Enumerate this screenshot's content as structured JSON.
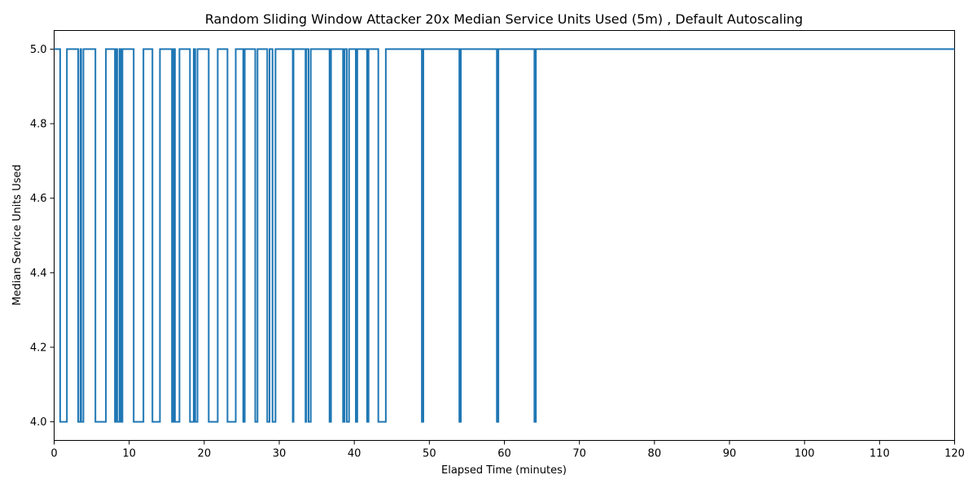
{
  "chart_data": {
    "type": "line",
    "title": "Random Sliding Window Attacker 20x Median Service Units Used (5m) , Default Autoscaling",
    "xlabel": "Elapsed Time (minutes)",
    "ylabel": "Median Service Units Used",
    "xlim": [
      0,
      120
    ],
    "ylim": [
      3.95,
      5.05
    ],
    "xticks": [
      0,
      10,
      20,
      30,
      40,
      50,
      60,
      70,
      80,
      90,
      100,
      110,
      120
    ],
    "yticks": [
      4.0,
      4.2,
      4.4,
      4.6,
      4.8,
      5.0
    ],
    "ytick_labels": [
      "4.0",
      "4.2",
      "4.4",
      "4.6",
      "4.8",
      "5.0"
    ],
    "grid": false,
    "legend": "none",
    "series": [
      {
        "color": "#1f77b4",
        "x": [
          0,
          0.8,
          0.8,
          1.7,
          1.7,
          3.2,
          3.2,
          3.5,
          3.5,
          3.6,
          3.6,
          3.9,
          3.9,
          4.1,
          4.1,
          5.5,
          5.5,
          6.9,
          6.9,
          8.1,
          8.1,
          8.3,
          8.3,
          8.4,
          8.4,
          8.7,
          8.7,
          8.9,
          8.9,
          9.1,
          9.1,
          9.3,
          9.3,
          10.6,
          10.6,
          11.9,
          11.9,
          13.1,
          13.1,
          14.1,
          14.1,
          15.7,
          15.7,
          15.9,
          15.9,
          16.1,
          16.1,
          16.7,
          16.7,
          18.1,
          18.1,
          18.6,
          18.6,
          18.8,
          18.8,
          19.1,
          19.1,
          20.6,
          20.6,
          21.8,
          21.8,
          23.1,
          23.1,
          24.2,
          24.2,
          25.2,
          25.2,
          25.4,
          25.4,
          26.8,
          26.8,
          27.1,
          27.1,
          28.4,
          28.4,
          28.7,
          28.7,
          29.1,
          29.1,
          29.5,
          29.5,
          31.8,
          31.8,
          31.9,
          31.9,
          33.5,
          33.5,
          33.6,
          33.6,
          33.9,
          33.9,
          34.2,
          34.2,
          36.7,
          36.7,
          36.9,
          36.9,
          38.5,
          38.5,
          38.7,
          38.7,
          39.0,
          39.0,
          39.3,
          39.3,
          40.2,
          40.2,
          40.4,
          40.4,
          41.7,
          41.7,
          41.9,
          41.9,
          43.2,
          43.2,
          44.2,
          44.2,
          49.0,
          49.0,
          49.2,
          49.2,
          54.0,
          54.0,
          54.2,
          54.2,
          59.0,
          59.0,
          59.2,
          59.2,
          64.0,
          64.0,
          64.2,
          64.2,
          120
        ],
        "y": [
          5.0,
          5.0,
          4.0,
          4.0,
          5.0,
          5.0,
          4.0,
          4.0,
          5.0,
          5.0,
          4.0,
          4.0,
          5.0,
          5.0,
          5.0,
          5.0,
          4.0,
          4.0,
          5.0,
          5.0,
          4.0,
          4.0,
          5.0,
          5.0,
          4.0,
          4.0,
          5.0,
          5.0,
          4.0,
          4.0,
          5.0,
          5.0,
          5.0,
          5.0,
          4.0,
          4.0,
          5.0,
          5.0,
          4.0,
          4.0,
          5.0,
          5.0,
          4.0,
          4.0,
          5.0,
          5.0,
          4.0,
          4.0,
          5.0,
          5.0,
          4.0,
          4.0,
          5.0,
          5.0,
          4.0,
          4.0,
          5.0,
          5.0,
          4.0,
          4.0,
          5.0,
          5.0,
          4.0,
          4.0,
          5.0,
          5.0,
          4.0,
          4.0,
          5.0,
          5.0,
          4.0,
          4.0,
          5.0,
          5.0,
          4.0,
          4.0,
          5.0,
          5.0,
          4.0,
          4.0,
          5.0,
          5.0,
          4.0,
          4.0,
          5.0,
          5.0,
          4.0,
          4.0,
          5.0,
          5.0,
          4.0,
          4.0,
          5.0,
          5.0,
          4.0,
          4.0,
          5.0,
          5.0,
          4.0,
          4.0,
          5.0,
          5.0,
          4.0,
          4.0,
          5.0,
          5.0,
          4.0,
          4.0,
          5.0,
          5.0,
          4.0,
          4.0,
          5.0,
          5.0,
          4.0,
          4.0,
          5.0,
          5.0,
          4.0,
          4.0,
          5.0,
          5.0,
          4.0,
          4.0,
          5.0,
          5.0,
          4.0,
          4.0,
          5.0,
          5.0,
          4.0,
          4.0,
          5.0,
          5.0
        ]
      }
    ]
  }
}
